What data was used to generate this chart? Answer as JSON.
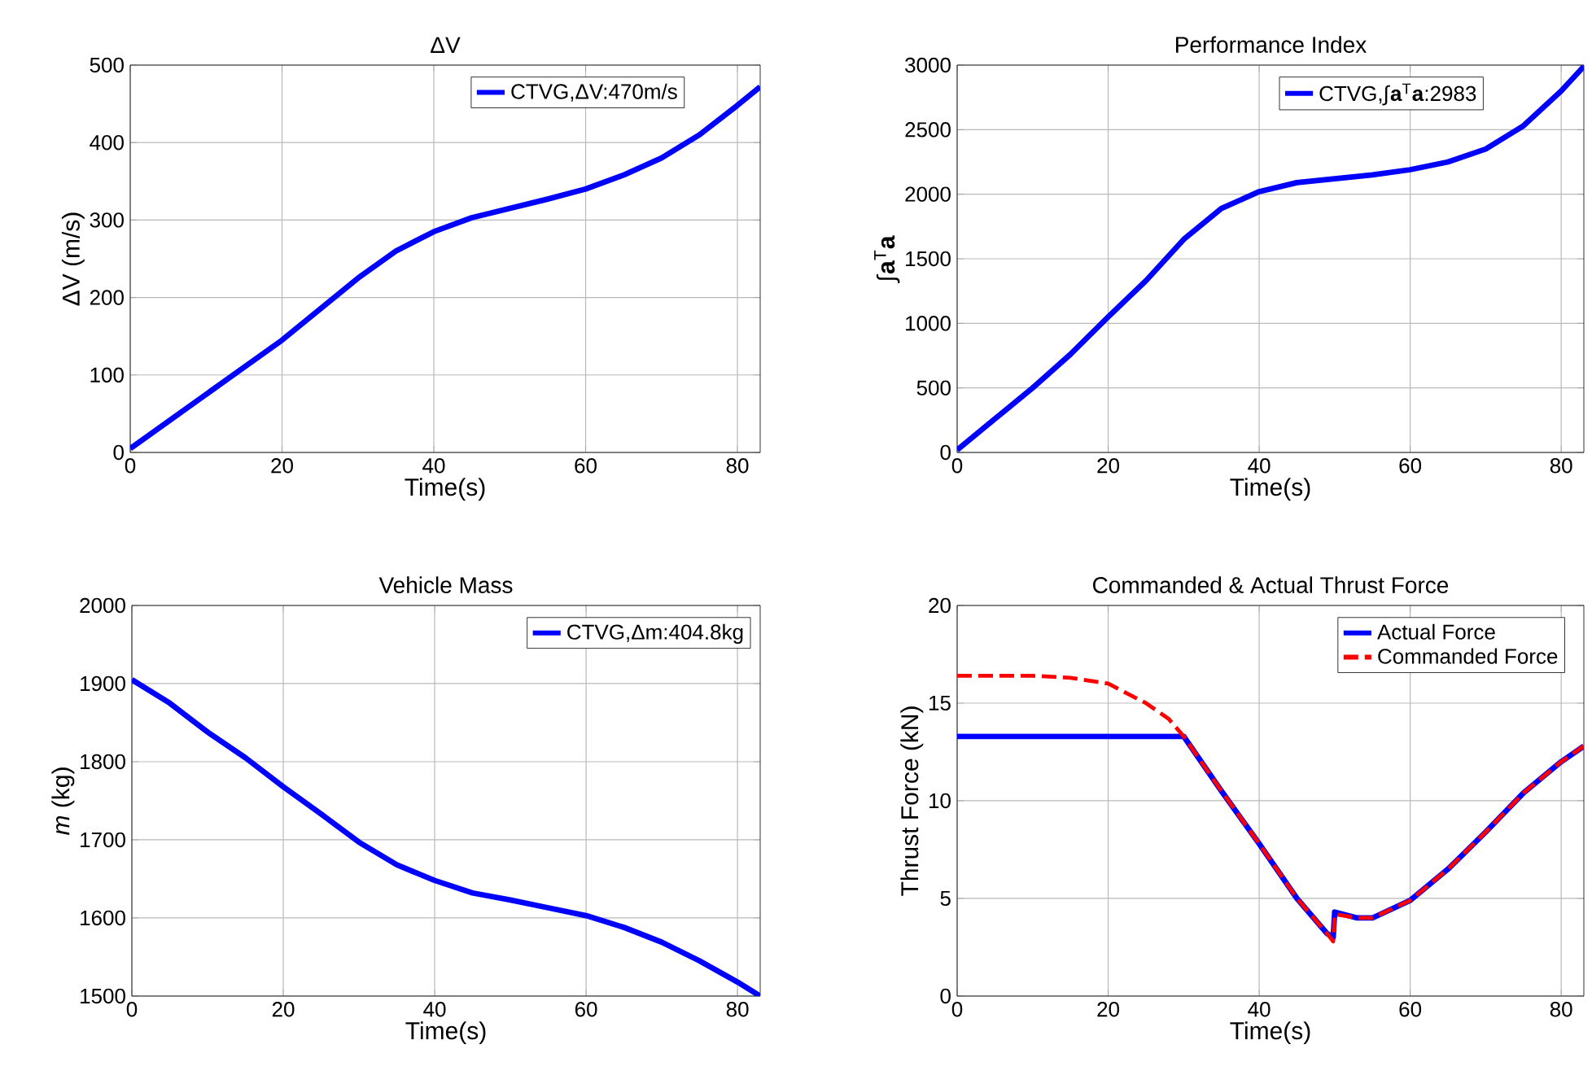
{
  "chart_data": [
    {
      "type": "line",
      "title": "ΔV",
      "xlabel": "Time(s)",
      "ylabel": "ΔV (m/s)",
      "xlim": [
        0,
        83
      ],
      "ylim": [
        0,
        500
      ],
      "xticks": [
        0,
        20,
        40,
        60,
        80
      ],
      "yticks": [
        0,
        100,
        200,
        300,
        400,
        500
      ],
      "grid": true,
      "legend": "top right",
      "marker": "none",
      "x": [
        0,
        5,
        10,
        15,
        20,
        25,
        30,
        35,
        40,
        45,
        50,
        55,
        60,
        65,
        70,
        75,
        80,
        83
      ],
      "series": [
        {
          "name": "CTVG,ΔV:470m/s",
          "color": "#0000ff",
          "line_style": "solid",
          "values": [
            5,
            40,
            75,
            110,
            145,
            185,
            225,
            260,
            285,
            303,
            315,
            327,
            340,
            358,
            380,
            410,
            448,
            472
          ]
        }
      ]
    },
    {
      "type": "line",
      "title": "Performance Index",
      "xlabel": "Time(s)",
      "ylabel": "∫**a**$^{T}$**a**",
      "xlim": [
        0,
        83
      ],
      "ylim": [
        0,
        3000
      ],
      "xticks": [
        0,
        20,
        40,
        60,
        80
      ],
      "yticks": [
        0,
        500,
        1000,
        1500,
        2000,
        2500,
        3000
      ],
      "grid": true,
      "legend": "top right",
      "marker": "none",
      "x": [
        0,
        5,
        10,
        15,
        20,
        25,
        30,
        35,
        40,
        45,
        50,
        55,
        60,
        65,
        70,
        75,
        80,
        83
      ],
      "series": [
        {
          "name": "CTVG,∫**a**$^{T}$**a**:2983",
          "color": "#0000ff",
          "line_style": "solid",
          "values": [
            20,
            260,
            500,
            760,
            1050,
            1330,
            1650,
            1890,
            2020,
            2090,
            2120,
            2150,
            2190,
            2250,
            2350,
            2530,
            2800,
            2990
          ]
        }
      ]
    },
    {
      "type": "line",
      "title": "Vehicle Mass",
      "xlabel": "Time(s)",
      "ylabel": "*m* (kg)",
      "xlim": [
        0,
        83
      ],
      "ylim": [
        1500,
        2000
      ],
      "xticks": [
        0,
        20,
        40,
        60,
        80
      ],
      "yticks": [
        1500,
        1600,
        1700,
        1800,
        1900,
        2000
      ],
      "grid": true,
      "legend": "top right",
      "marker": "none",
      "x": [
        0,
        5,
        10,
        15,
        20,
        25,
        30,
        35,
        40,
        45,
        50,
        55,
        60,
        65,
        70,
        75,
        80,
        83
      ],
      "series": [
        {
          "name": "CTVG,Δm:404.8kg",
          "color": "#0000ff",
          "line_style": "solid",
          "values": [
            1905,
            1875,
            1838,
            1805,
            1768,
            1733,
            1697,
            1668,
            1648,
            1632,
            1623,
            1613,
            1603,
            1588,
            1569,
            1545,
            1518,
            1500
          ]
        }
      ]
    },
    {
      "type": "line",
      "title": "Commanded & Actual Thrust Force",
      "xlabel": "Time(s)",
      "ylabel": "Thrust Force (kN)",
      "xlim": [
        0,
        83
      ],
      "ylim": [
        0,
        20
      ],
      "xticks": [
        0,
        20,
        40,
        60,
        80
      ],
      "yticks": [
        0,
        5,
        10,
        15,
        20
      ],
      "grid": true,
      "legend": "top right",
      "marker": "none",
      "x": [
        0,
        10,
        15,
        20,
        25,
        28,
        30,
        35,
        40,
        45,
        49,
        49.8,
        50,
        53,
        55,
        60,
        65,
        70,
        75,
        80,
        83
      ],
      "series": [
        {
          "name": "Actual Force",
          "color": "#0000ff",
          "line_style": "solid",
          "values": [
            13.3,
            13.3,
            13.3,
            13.3,
            13.3,
            13.3,
            13.3,
            10.5,
            7.8,
            5.0,
            3.2,
            3.0,
            4.3,
            4.0,
            4.0,
            4.9,
            6.5,
            8.4,
            10.4,
            12.0,
            12.8
          ]
        },
        {
          "name": "Commanded Force",
          "color": "#ff0000",
          "line_style": "dashed",
          "values": [
            16.4,
            16.4,
            16.3,
            16.0,
            15.0,
            14.2,
            13.3,
            10.5,
            7.8,
            5.0,
            3.2,
            2.8,
            4.2,
            4.0,
            4.0,
            4.9,
            6.5,
            8.4,
            10.4,
            12.0,
            12.8
          ]
        }
      ]
    }
  ]
}
